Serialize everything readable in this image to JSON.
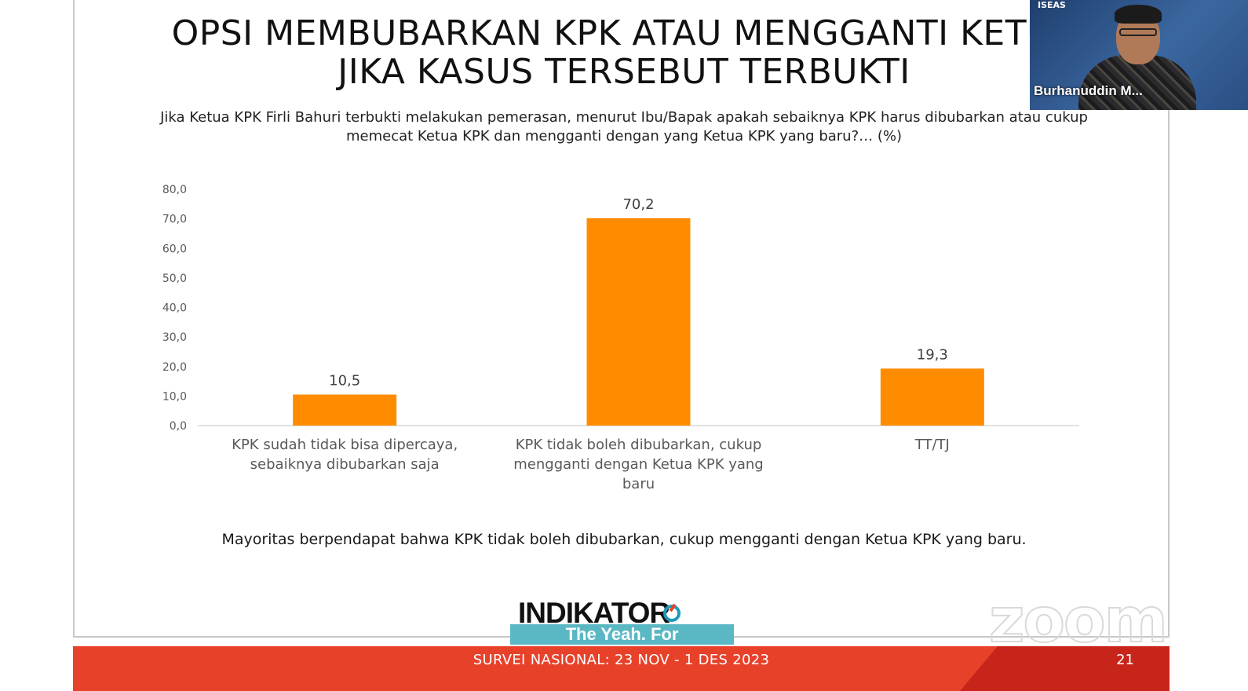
{
  "slide": {
    "title_line1": "OPSI MEMBUBARKAN KPK ATAU MENGGANTI KETUA",
    "title_line2": "JIKA KASUS TERSEBUT TERBUKTI",
    "subtitle_line1": "Jika Ketua KPK Firli Bahuri terbukti melakukan pemerasan, menurut Ibu/Bapak apakah sebaiknya KPK harus dibubarkan atau cukup",
    "subtitle_line2": "memecat Ketua KPK dan mengganti dengan yang Ketua KPK yang baru?… (%)",
    "conclusion": "Mayoritas berpendapat bahwa KPK tidak boleh dibubarkan, cukup mengganti dengan Ketua KPK yang baru.",
    "logo": "INDIKATOR",
    "caption": "The Yeah. For",
    "footer": "SURVEI NASIONAL: 23 NOV - 1 DES 2023",
    "page_number": "21"
  },
  "video_overlay": {
    "participant_name": "Burhanuddin M...",
    "brand": "ISEAS",
    "watermark": "zoom"
  },
  "chart_data": {
    "type": "bar",
    "categories": [
      [
        "KPK sudah tidak bisa dipercaya,",
        "sebaiknya dibubarkan saja"
      ],
      [
        "KPK tidak boleh dibubarkan, cukup",
        "mengganti dengan Ketua KPK yang",
        "baru"
      ],
      [
        "TT/TJ"
      ]
    ],
    "values": [
      10.5,
      70.2,
      19.3
    ],
    "value_labels": [
      "10,5",
      "70,2",
      "19,3"
    ],
    "ylim": [
      0,
      80
    ],
    "yticks": [
      "0,0",
      "10,0",
      "20,0",
      "30,0",
      "40,0",
      "50,0",
      "60,0",
      "70,0",
      "80,0"
    ],
    "grid": false,
    "bar_color": "#ff8c00"
  }
}
